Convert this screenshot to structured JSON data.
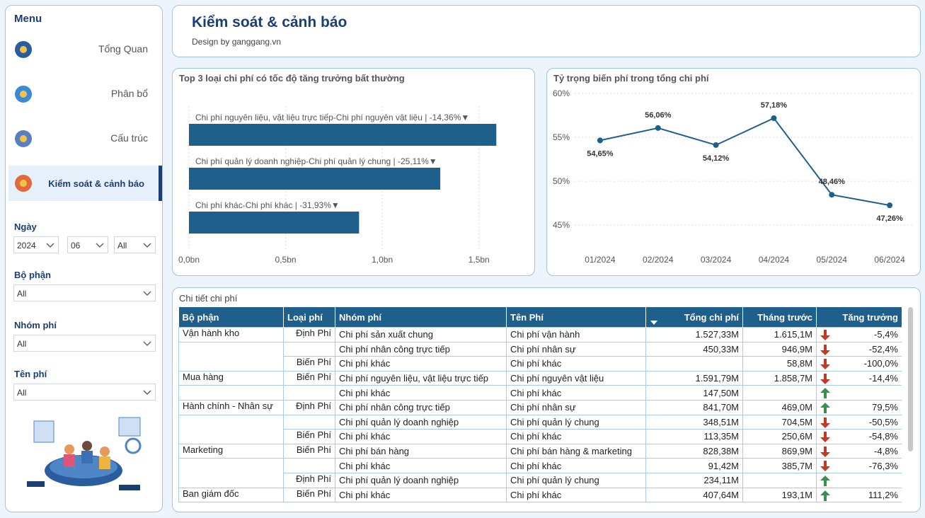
{
  "menu": {
    "title": "Menu",
    "items": [
      "Tổng Quan",
      "Phân bổ",
      "Cấu trúc",
      "Kiểm soát & cảnh báo"
    ],
    "active": 3
  },
  "filters": [
    {
      "label": "Ngày",
      "options": [
        "2024",
        "06",
        "All"
      ]
    },
    {
      "label": "Bộ phận",
      "options": [
        "All"
      ]
    },
    {
      "label": "Nhóm phí",
      "options": [
        "All"
      ]
    },
    {
      "label": "Tên phí",
      "options": [
        "All"
      ]
    }
  ],
  "header": {
    "title": "Kiểm soát & cảnh báo",
    "subtitle": "Design by ganggang.vn"
  },
  "chart_data": [
    {
      "type": "bar",
      "orientation": "horizontal",
      "title": "Top 3 loại chi phí có tốc độ tăng trưởng bất thường",
      "categories": [
        "Chi phí nguyên liệu, vật liệu trực tiếp-Chi phí nguyên vật liệu | -14,36%▼",
        "Chi phí quản lý doanh nghiệp-Chi phí quản lý chung | -25,11%▼",
        "Chi phí khác-Chi phí khác | -31,93%▼"
      ],
      "values": [
        1.59,
        1.3,
        0.88
      ],
      "color": "#1f5f8b",
      "xlim": [
        0,
        1.75
      ],
      "xticks": [
        {
          "value": 0,
          "label": "0,0bn"
        },
        {
          "value": 0.5,
          "label": "0,5bn"
        },
        {
          "value": 1,
          "label": "1,0bn"
        },
        {
          "value": 1.5,
          "label": "1,5bn"
        }
      ],
      "grid": true
    },
    {
      "type": "line",
      "title": "Tỷ trọng biến phí trong tổng chi phí",
      "categories": [
        "01/2024",
        "02/2024",
        "03/2024",
        "04/2024",
        "05/2024",
        "06/2024"
      ],
      "values": [
        54.65,
        56.06,
        54.12,
        57.18,
        48.46,
        47.26
      ],
      "value_labels": [
        "54,65%",
        "56,06%",
        "54,12%",
        "57,18%",
        "48,46%",
        "47,26%"
      ],
      "color": "#1f5f8b",
      "ylim": [
        43,
        60
      ],
      "yticks": [
        {
          "value": 45,
          "label": "45%"
        },
        {
          "value": 50,
          "label": "50%"
        },
        {
          "value": 55,
          "label": "55%"
        },
        {
          "value": 60,
          "label": "60%"
        }
      ],
      "grid": true
    }
  ],
  "table": {
    "title": "Chi tiết chi phí",
    "columns": [
      "Bộ phận",
      "Loại phí",
      "Nhóm phí",
      "Tên Phí",
      "Tổng chi phí",
      "Tháng trước",
      "Tăng trưởng"
    ],
    "rows": [
      [
        "Vận hành kho",
        "Định Phí",
        "Chi phí sản xuất chung",
        "Chi phí vận hành",
        "1.527,33M",
        "1.615,1M",
        "-5,4%"
      ],
      [
        null,
        null,
        "Chi phí nhân công trực tiếp",
        "Chi phí nhân sự",
        "450,33M",
        "946,9M",
        "-52,4%"
      ],
      [
        null,
        "Biến Phí",
        "Chi phí khác",
        "Chi phí khác",
        null,
        "58,8M",
        "-100,0%"
      ],
      [
        "Mua hàng",
        "Biến Phí",
        "Chi phí nguyên liệu, vật liệu trực tiếp",
        "Chi phí nguyên vật liệu",
        "1.591,79M",
        "1.858,7M",
        "-14,4%"
      ],
      [
        null,
        null,
        "Chi phí khác",
        "Chi phí khác",
        "147,50M",
        null,
        null
      ],
      [
        "Hành chính - Nhân sự",
        "Định Phí",
        "Chi phí nhân công trực tiếp",
        "Chi phí nhân sự",
        "841,70M",
        "469,0M",
        "79,5%"
      ],
      [
        null,
        null,
        "Chi phí quản lý doanh nghiệp",
        "Chi phí quản lý chung",
        "348,51M",
        "704,5M",
        "-50,5%"
      ],
      [
        null,
        "Biến Phí",
        "Chi phí khác",
        "Chi phí khác",
        "113,35M",
        "250,6M",
        "-54,8%"
      ],
      [
        "Marketing",
        "Biến Phí",
        "Chi phí bán hàng",
        "Chi phí bán hàng & marketing",
        "828,38M",
        "869,9M",
        "-4,8%"
      ],
      [
        null,
        null,
        "Chi phí khác",
        "Chi phí khác",
        "91,42M",
        "385,7M",
        "-76,3%"
      ],
      [
        null,
        "Định Phí",
        "Chi phí quản lý doanh nghiệp",
        "Chi phí quản lý chung",
        "234,11M",
        null,
        null
      ],
      [
        "Ban giám đốc",
        "Biến Phí",
        "Chi phí khác",
        "Chi phí khác",
        "407,64M",
        "193,1M",
        "111,2%"
      ]
    ],
    "trends": [
      "down",
      "down",
      "down",
      "down",
      "up",
      "up",
      "down",
      "down",
      "down",
      "down",
      "up",
      "up"
    ]
  }
}
